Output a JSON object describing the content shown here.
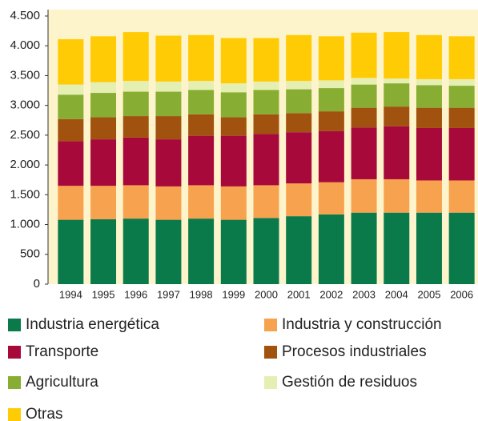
{
  "chart_data": {
    "type": "stacked_bar",
    "categories": [
      "1994",
      "1995",
      "1996",
      "1997",
      "1998",
      "1999",
      "2000",
      "2001",
      "2002",
      "2003",
      "2004",
      "2005",
      "2006"
    ],
    "series": [
      {
        "name": "Industria energética",
        "color": "#0b7a4b",
        "values": [
          1080,
          1090,
          1100,
          1080,
          1100,
          1080,
          1110,
          1140,
          1170,
          1200,
          1200,
          1200,
          1200
        ]
      },
      {
        "name": "Industria y construcción",
        "color": "#f7a24f",
        "values": [
          570,
          560,
          560,
          560,
          560,
          560,
          550,
          550,
          540,
          560,
          560,
          540,
          540
        ]
      },
      {
        "name": "Transporte",
        "color": "#a8093b",
        "values": [
          750,
          780,
          800,
          790,
          830,
          850,
          860,
          860,
          860,
          870,
          890,
          880,
          880
        ]
      },
      {
        "name": "Procesos industriales",
        "color": "#a1520f",
        "values": [
          370,
          370,
          360,
          390,
          360,
          310,
          330,
          320,
          330,
          330,
          330,
          340,
          340
        ]
      },
      {
        "name": "Agricultura",
        "color": "#87ad33",
        "values": [
          410,
          410,
          410,
          410,
          410,
          420,
          410,
          400,
          390,
          390,
          390,
          380,
          370
        ]
      },
      {
        "name": "Gestión de residuos",
        "color": "#e6efb2",
        "values": [
          170,
          180,
          180,
          170,
          150,
          150,
          140,
          140,
          130,
          110,
          80,
          100,
          110
        ]
      },
      {
        "name": "Otras",
        "color": "#ffcb05",
        "values": [
          760,
          770,
          820,
          770,
          770,
          760,
          730,
          770,
          740,
          760,
          780,
          740,
          720
        ]
      }
    ],
    "ylim": [
      0,
      4500
    ],
    "yticks": [
      0,
      500,
      {
        "value": 1000,
        "label": "1.000"
      },
      {
        "value": 1500,
        "label": "1.500"
      },
      {
        "value": 2000,
        "label": "2.000"
      },
      {
        "value": 2500,
        "label": "2.500"
      },
      {
        "value": 3000,
        "label": "3.000"
      },
      {
        "value": 3500,
        "label": "3.500"
      },
      {
        "value": 4000,
        "label": "4.000"
      },
      {
        "value": 4500,
        "label": "4.500"
      }
    ]
  }
}
